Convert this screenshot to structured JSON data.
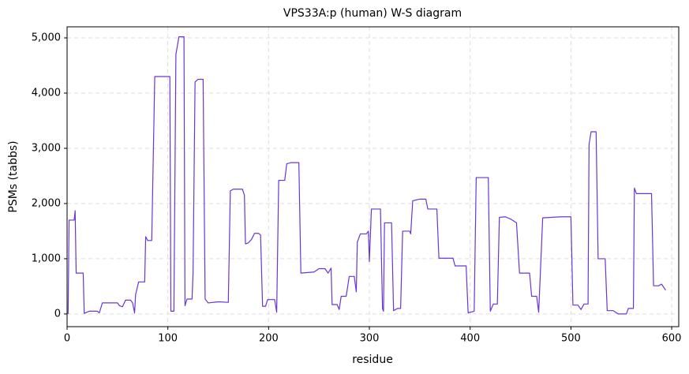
{
  "chart_data": {
    "type": "line",
    "title": "VPS33A:p (human) W-S diagram",
    "xlabel": "residue",
    "ylabel": "PSMs (tabbs)",
    "xlim": [
      0,
      607
    ],
    "ylim": [
      -230,
      5200
    ],
    "xticks": [
      0,
      100,
      200,
      300,
      400,
      500,
      600
    ],
    "yticks": [
      0,
      {
        "value": 1000,
        "label": "1,000"
      },
      {
        "value": 2000,
        "label": "2,000"
      },
      {
        "value": 3000,
        "label": "3,000"
      },
      {
        "value": 4000,
        "label": "4,000"
      },
      {
        "value": 5000,
        "label": "5,000"
      }
    ],
    "grid": true,
    "color": "#6a35d6",
    "x": [
      1,
      2,
      7,
      8,
      9,
      16,
      17,
      22,
      30,
      32,
      35,
      50,
      52,
      55,
      58,
      63,
      65,
      67,
      68,
      71,
      77,
      78,
      80,
      84,
      87,
      102,
      103,
      106,
      108,
      111,
      116,
      117,
      119,
      124,
      125,
      127,
      130,
      135,
      137,
      140,
      150,
      160,
      162,
      165,
      174,
      176,
      177,
      180,
      183,
      186,
      190,
      192,
      194,
      197,
      199,
      206,
      208,
      210,
      216,
      218,
      222,
      230,
      232,
      245,
      250,
      256,
      259,
      262,
      263,
      268,
      270,
      272,
      277,
      280,
      285,
      287,
      288,
      291,
      297,
      299,
      300,
      302,
      311,
      313,
      314,
      315,
      322,
      324,
      328,
      331,
      333,
      340,
      341,
      343,
      350,
      356,
      358,
      367,
      369,
      383,
      385,
      396,
      398,
      404,
      406,
      418,
      420,
      423,
      427,
      429,
      435,
      440,
      446,
      449,
      459,
      461,
      466,
      468,
      472,
      490,
      500,
      502,
      507,
      510,
      513,
      517,
      518,
      520,
      525,
      527,
      534,
      536,
      542,
      547,
      555,
      557,
      562,
      563,
      565,
      580,
      582,
      587,
      590,
      594
    ],
    "values": [
      0,
      1700,
      1700,
      1870,
      740,
      740,
      10,
      50,
      50,
      20,
      200,
      200,
      150,
      130,
      250,
      250,
      200,
      20,
      350,
      580,
      580,
      1400,
      1330,
      1330,
      4300,
      4300,
      50,
      50,
      4700,
      5020,
      5020,
      150,
      270,
      270,
      730,
      4200,
      4250,
      4250,
      270,
      200,
      220,
      210,
      2230,
      2260,
      2260,
      2150,
      1270,
      1290,
      1350,
      1460,
      1460,
      1430,
      140,
      140,
      260,
      260,
      30,
      2420,
      2420,
      2720,
      2740,
      2740,
      740,
      760,
      820,
      820,
      740,
      830,
      170,
      170,
      80,
      320,
      320,
      680,
      680,
      400,
      1300,
      1450,
      1450,
      1500,
      950,
      1900,
      1900,
      100,
      50,
      1650,
      1650,
      60,
      100,
      100,
      1500,
      1500,
      1450,
      2050,
      2080,
      2080,
      1900,
      1900,
      1010,
      1010,
      870,
      870,
      20,
      50,
      2470,
      2470,
      50,
      180,
      180,
      1750,
      1760,
      1720,
      1650,
      740,
      740,
      320,
      320,
      30,
      1740,
      1760,
      1760,
      160,
      160,
      80,
      180,
      180,
      3070,
      3300,
      3300,
      1000,
      1000,
      60,
      60,
      0,
      0,
      100,
      100,
      2280,
      2180,
      2180,
      510,
      510,
      540,
      430
    ]
  }
}
